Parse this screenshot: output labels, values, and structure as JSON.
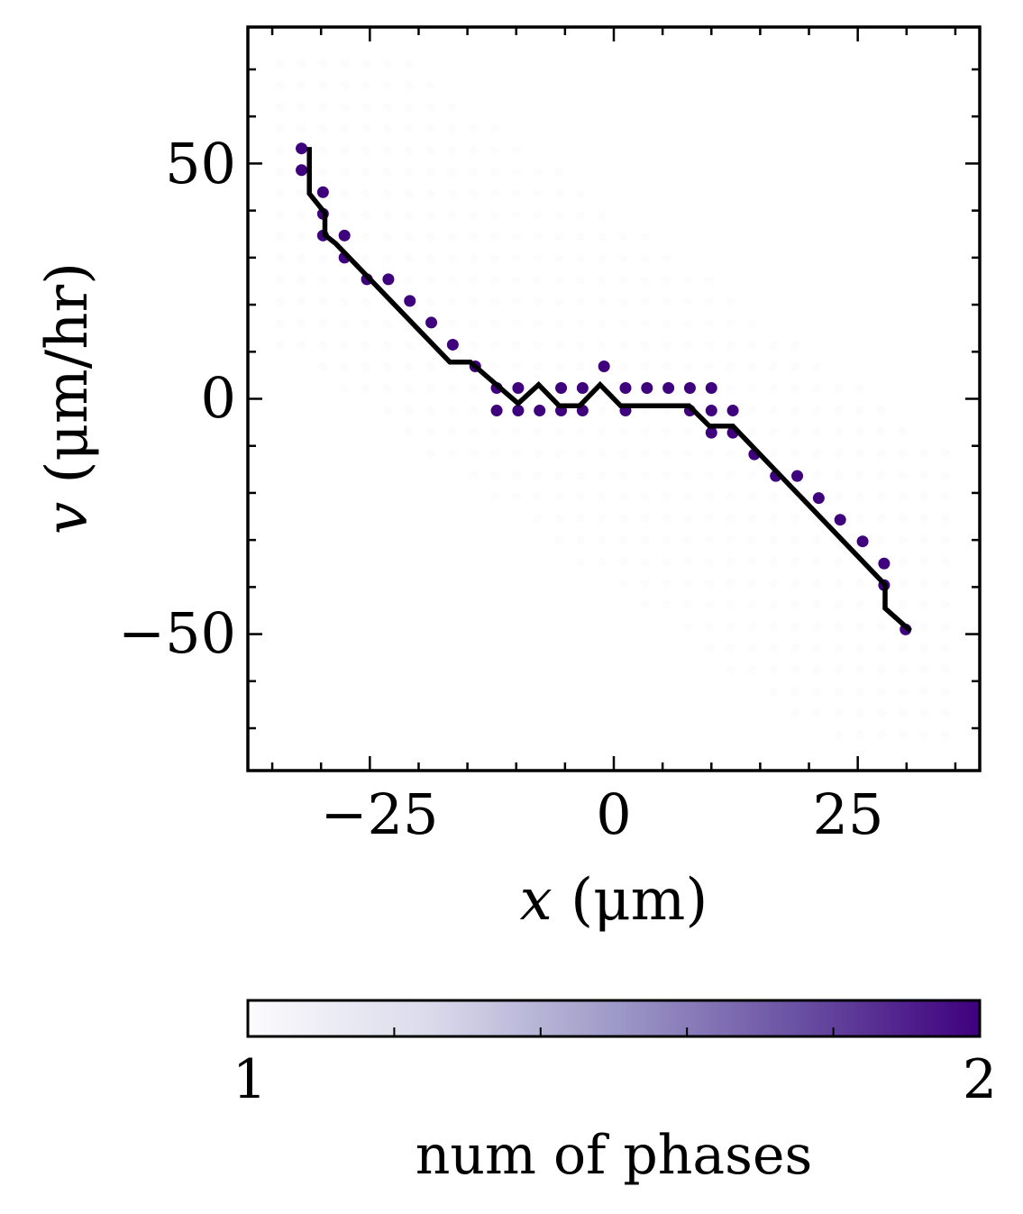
{
  "chart_data": {
    "type": "scatter",
    "xlabel": "x (μm)",
    "ylabel": "v (μm/hr)",
    "xlabel_var": "x",
    "xlabel_unit": " (μm)",
    "ylabel_var": "v",
    "ylabel_unit": " (μm/hr)",
    "xlim": [
      -37.5,
      37.5
    ],
    "ylim": [
      -79,
      79
    ],
    "xticks": [
      -25,
      0,
      25
    ],
    "xtick_labels": [
      "−25",
      "0",
      "25"
    ],
    "yticks": [
      -50,
      0,
      50
    ],
    "ytick_labels": [
      "−50",
      "0",
      "50"
    ],
    "x_minor_step": 5,
    "y_minor_step": 10,
    "grid": false,
    "colormap": {
      "name": "Purples",
      "min": 1,
      "max": 2,
      "label": "num of phases",
      "low_color": "#fcfbfd",
      "high_color": "#3f007d"
    },
    "colorbar_ticks": [
      "1",
      "2"
    ],
    "two_phase_points": [
      {
        "x": -32,
        "v": 53.2
      },
      {
        "x": -32,
        "v": 48.6
      },
      {
        "x": -29.8,
        "v": 43.9
      },
      {
        "x": -29.8,
        "v": 39.3
      },
      {
        "x": -29.8,
        "v": 34.7
      },
      {
        "x": -27.6,
        "v": 34.7
      },
      {
        "x": -27.6,
        "v": 30
      },
      {
        "x": -25.3,
        "v": 25.4
      },
      {
        "x": -23.1,
        "v": 25.4
      },
      {
        "x": -20.9,
        "v": 20.8
      },
      {
        "x": -18.7,
        "v": 16.2
      },
      {
        "x": -16.5,
        "v": 11.5
      },
      {
        "x": -14.2,
        "v": 6.9
      },
      {
        "x": -12,
        "v": 2.3
      },
      {
        "x": -12,
        "v": -2.5
      },
      {
        "x": -9.8,
        "v": 2.3
      },
      {
        "x": -9.8,
        "v": -2.5
      },
      {
        "x": -7.6,
        "v": -2.5
      },
      {
        "x": -5.4,
        "v": 2.3
      },
      {
        "x": -5.4,
        "v": -2.5
      },
      {
        "x": -3.2,
        "v": 2.3
      },
      {
        "x": -3.2,
        "v": -2.5
      },
      {
        "x": -1,
        "v": 6.9
      },
      {
        "x": 1.2,
        "v": 2.3
      },
      {
        "x": 1.2,
        "v": -2.5
      },
      {
        "x": 3.4,
        "v": 2.3
      },
      {
        "x": 5.6,
        "v": 2.3
      },
      {
        "x": 7.8,
        "v": 2.3
      },
      {
        "x": 7.8,
        "v": -2.5
      },
      {
        "x": 10,
        "v": -2.5
      },
      {
        "x": 10,
        "v": 2.3
      },
      {
        "x": 10,
        "v": -7.2
      },
      {
        "x": 12.2,
        "v": -7.2
      },
      {
        "x": 12.2,
        "v": -2.5
      },
      {
        "x": 14.4,
        "v": -11.8
      },
      {
        "x": 16.6,
        "v": -16.4
      },
      {
        "x": 18.8,
        "v": -16.4
      },
      {
        "x": 21,
        "v": -21.1
      },
      {
        "x": 23.2,
        "v": -25.7
      },
      {
        "x": 25.5,
        "v": -30.3
      },
      {
        "x": 27.7,
        "v": -35
      },
      {
        "x": 27.7,
        "v": -39.6
      },
      {
        "x": 29.9,
        "v": -49
      }
    ],
    "boundary_line": {
      "x": [
        -31.2,
        -31.2,
        -29.6,
        -29.6,
        -28.5,
        -16.8,
        -14.7,
        -9.8,
        -7.7,
        -5.6,
        -3.5,
        -1.4,
        0.7,
        2.8,
        7.7,
        9.8,
        12.2,
        27.8,
        27.8,
        30.4
      ],
      "v": [
        53.5,
        43.6,
        39.5,
        34.8,
        33.0,
        7.8,
        7.8,
        -1.0,
        3.0,
        -1.5,
        -1.5,
        3.0,
        -1.5,
        -1.5,
        -1.5,
        -5.8,
        -5.8,
        -39.5,
        -44.5,
        -49.3
      ]
    },
    "background_grid_dx": 2.2,
    "background_grid_dv": 4.6
  }
}
